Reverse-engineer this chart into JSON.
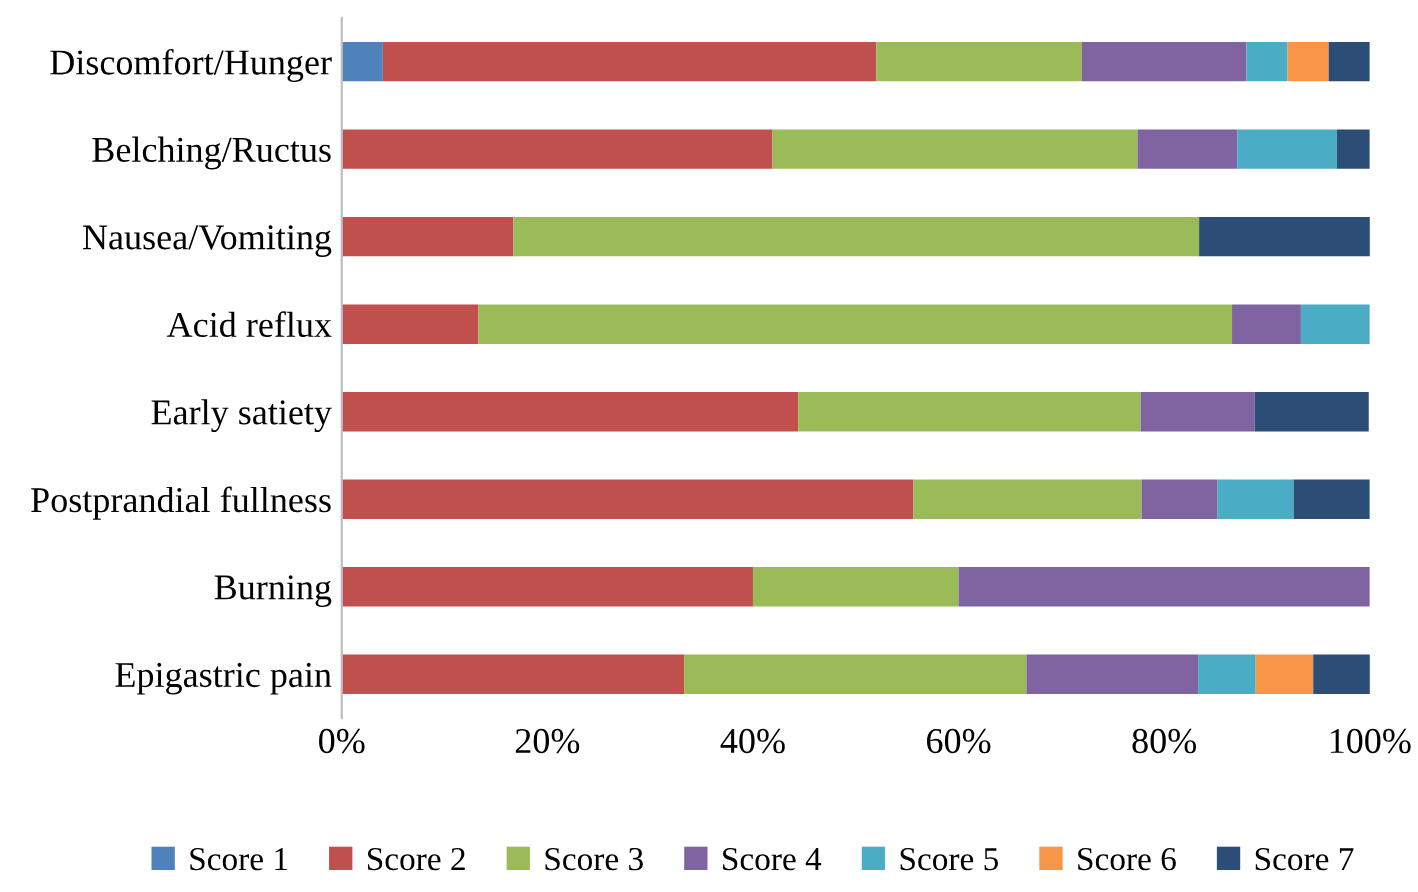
{
  "chart_data": {
    "type": "bar",
    "orientation": "horizontal",
    "stacked": true,
    "legend": "bottom",
    "grid": false,
    "categories": [
      "Discomfort/Hunger",
      "Belching/Ructus",
      "Nausea/Vomiting",
      "Acid reflux",
      "Early satiety",
      "Postprandial fullness",
      "Burning",
      "Epigastric pain"
    ],
    "xlim": [
      0,
      100
    ],
    "xticks": [
      {
        "value": 0,
        "label": "0%"
      },
      {
        "value": 20,
        "label": "20%"
      },
      {
        "value": 40,
        "label": "40%"
      },
      {
        "value": 60,
        "label": "60%"
      },
      {
        "value": 80,
        "label": "80%"
      },
      {
        "value": 100,
        "label": "100%"
      }
    ],
    "series": [
      {
        "name": "Score 1",
        "color": "#4f81bd",
        "values": [
          4,
          0,
          0,
          0,
          0,
          0,
          0,
          0
        ]
      },
      {
        "name": "Score 2",
        "color": "#c0504d",
        "values": [
          48,
          41.9,
          16.7,
          13.3,
          44.4,
          55.6,
          40,
          33.3
        ]
      },
      {
        "name": "Score 3",
        "color": "#9bbb59",
        "values": [
          20,
          35.5,
          66.7,
          73.3,
          33.3,
          22.2,
          20,
          33.3
        ]
      },
      {
        "name": "Score 4",
        "color": "#8064a2",
        "values": [
          16,
          9.7,
          0,
          6.7,
          11.1,
          7.4,
          40,
          16.7
        ]
      },
      {
        "name": "Score 5",
        "color": "#4bacc6",
        "values": [
          4,
          9.7,
          0,
          6.7,
          0,
          7.4,
          0,
          5.6
        ]
      },
      {
        "name": "Score 6",
        "color": "#f79646",
        "values": [
          4,
          0,
          0,
          0,
          0,
          0,
          0,
          5.6
        ]
      },
      {
        "name": "Score 7",
        "color": "#2c4d75",
        "values": [
          4,
          3.2,
          16.7,
          0,
          11.1,
          7.4,
          0,
          5.6
        ]
      }
    ]
  }
}
